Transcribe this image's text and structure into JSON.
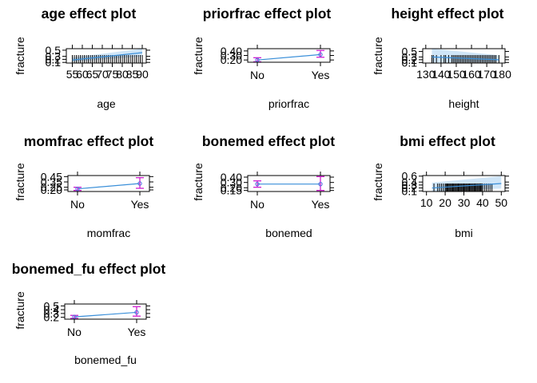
{
  "chart_data": [
    {
      "type": "effect",
      "title": "age effect plot",
      "xlabel": "age",
      "ylabel": "fracture",
      "x_kind": "numeric",
      "x_ticks": [
        "55",
        "60",
        "65",
        "70",
        "75",
        "80",
        "85",
        "90"
      ],
      "xlim": [
        52,
        92
      ],
      "y_ticks": [
        "0.5",
        "0.3",
        "0.2",
        "0.1"
      ],
      "ylim": [
        0.08,
        0.55
      ],
      "line": {
        "x": [
          55,
          90
        ],
        "y": [
          0.18,
          0.42
        ]
      },
      "band": {
        "x": [
          55,
          90
        ],
        "lower": [
          0.12,
          0.3
        ],
        "upper": [
          0.26,
          0.55
        ]
      },
      "rug": [
        55,
        56,
        57,
        58,
        59,
        60,
        61,
        62,
        63,
        64,
        65,
        66,
        67,
        68,
        69,
        70,
        71,
        72,
        73,
        74,
        75,
        76,
        77,
        78,
        79,
        80,
        81,
        82,
        83,
        84,
        85,
        86,
        87,
        88,
        89,
        90
      ]
    },
    {
      "type": "effect",
      "title": "priorfrac effect plot",
      "xlabel": "priorfrac",
      "ylabel": "fracture",
      "x_kind": "factor",
      "categories": [
        "No",
        "Yes"
      ],
      "y_ticks": [
        "0.40",
        "0.30",
        "0.20"
      ],
      "ylim": [
        0.15,
        0.45
      ],
      "values": [
        0.2,
        0.32
      ],
      "lower": [
        0.16,
        0.26
      ],
      "upper": [
        0.25,
        0.41
      ]
    },
    {
      "type": "effect",
      "title": "height effect plot",
      "xlabel": "height",
      "ylabel": "fracture",
      "x_kind": "numeric",
      "x_ticks": [
        "130",
        "140",
        "150",
        "160",
        "170",
        "180"
      ],
      "xlim": [
        128,
        182
      ],
      "y_ticks": [
        "0.5",
        "0.3",
        "0.2",
        "0.1"
      ],
      "ylim": [
        0.08,
        0.6
      ],
      "line": {
        "x": [
          134,
          178
        ],
        "y": [
          0.3,
          0.2
        ]
      },
      "band": {
        "x": [
          134,
          178
        ],
        "lower": [
          0.1,
          0.12
        ],
        "upper": [
          0.6,
          0.36
        ]
      },
      "rug": [
        134,
        135,
        137,
        140,
        142,
        143,
        145,
        147,
        148,
        149,
        150,
        151,
        152,
        153,
        154,
        155,
        156,
        157,
        158,
        159,
        160,
        161,
        162,
        163,
        164,
        165,
        166,
        167,
        168,
        169,
        170,
        171,
        172,
        173,
        174,
        175,
        176,
        178
      ]
    },
    {
      "type": "effect",
      "title": "momfrac effect plot",
      "xlabel": "momfrac",
      "ylabel": "fracture",
      "x_kind": "factor",
      "categories": [
        "No",
        "Yes"
      ],
      "y_ticks": [
        "0.45",
        "0.35",
        "0.25",
        "0.20"
      ],
      "ylim": [
        0.17,
        0.47
      ],
      "values": [
        0.22,
        0.32
      ],
      "lower": [
        0.19,
        0.23
      ],
      "upper": [
        0.25,
        0.43
      ]
    },
    {
      "type": "effect",
      "title": "bonemed effect plot",
      "xlabel": "bonemed",
      "ylabel": "fracture",
      "x_kind": "factor",
      "categories": [
        "No",
        "Yes"
      ],
      "y_ticks": [
        "0.40",
        "0.30",
        "0.20",
        "0.15"
      ],
      "ylim": [
        0.13,
        0.43
      ],
      "values": [
        0.27,
        0.27
      ],
      "lower": [
        0.21,
        0.15
      ],
      "upper": [
        0.33,
        0.41
      ]
    },
    {
      "type": "effect",
      "title": "bmi effect plot",
      "xlabel": "bmi",
      "ylabel": "fracture",
      "x_kind": "numeric",
      "x_ticks": [
        "10",
        "20",
        "30",
        "40",
        "50"
      ],
      "xlim": [
        8,
        52
      ],
      "y_ticks": [
        "0.6",
        "0.4",
        "0.3",
        "0.2",
        "0.1"
      ],
      "ylim": [
        0.08,
        0.62
      ],
      "line": {
        "x": [
          13,
          50
        ],
        "y": [
          0.2,
          0.35
        ]
      },
      "band": {
        "x": [
          13,
          50
        ],
        "lower": [
          0.08,
          0.18
        ],
        "upper": [
          0.38,
          0.6
        ]
      },
      "rug": [
        14,
        16,
        17,
        18,
        19,
        20,
        20.5,
        21,
        21.5,
        22,
        22.5,
        23,
        23.5,
        24,
        24.5,
        25,
        25.5,
        26,
        26.5,
        27,
        27.5,
        28,
        28.5,
        29,
        29.5,
        30,
        30.5,
        31,
        31.5,
        32,
        32.5,
        33,
        33.5,
        34,
        34.5,
        35,
        35.5,
        36,
        36.5,
        37,
        37.5,
        38,
        38.5,
        39,
        39.5,
        40,
        41,
        42,
        43,
        44,
        45
      ]
    },
    {
      "type": "effect",
      "title": "bonemed_fu effect plot",
      "xlabel": "bonemed_fu",
      "ylabel": "fracture",
      "x_kind": "factor",
      "categories": [
        "No",
        "Yes"
      ],
      "y_ticks": [
        "0.5",
        "0.4",
        "0.3",
        "0.2"
      ],
      "ylim": [
        0.15,
        0.55
      ],
      "values": [
        0.21,
        0.33
      ],
      "lower": [
        0.17,
        0.23
      ],
      "upper": [
        0.25,
        0.48
      ]
    }
  ]
}
